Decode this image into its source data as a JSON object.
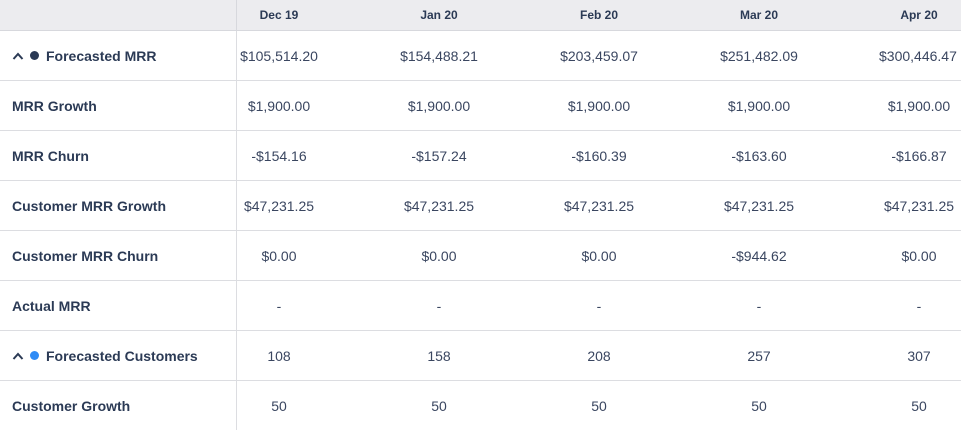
{
  "columns": [
    "Dec 19",
    "Jan 20",
    "Feb 20",
    "Mar 20",
    "Apr 20"
  ],
  "colors": {
    "mrr_dot": "#2b3a55",
    "customers_dot": "#2f8bf5"
  },
  "rows": [
    {
      "label": "Forecasted MRR",
      "group": true,
      "icon": "chevron-up-icon",
      "values": [
        "$105,514.20",
        "$154,488.21",
        "$203,459.07",
        "$251,482.09",
        "$300,446.47"
      ]
    },
    {
      "label": "MRR Growth",
      "values": [
        "$1,900.00",
        "$1,900.00",
        "$1,900.00",
        "$1,900.00",
        "$1,900.00"
      ]
    },
    {
      "label": "MRR Churn",
      "values": [
        "-$154.16",
        "-$157.24",
        "-$160.39",
        "-$163.60",
        "-$166.87"
      ]
    },
    {
      "label": "Customer MRR Growth",
      "values": [
        "$47,231.25",
        "$47,231.25",
        "$47,231.25",
        "$47,231.25",
        "$47,231.25"
      ]
    },
    {
      "label": "Customer MRR Churn",
      "values": [
        "$0.00",
        "$0.00",
        "$0.00",
        "-$944.62",
        "$0.00"
      ]
    },
    {
      "label": "Actual MRR",
      "values": [
        "-",
        "-",
        "-",
        "-",
        "-"
      ]
    },
    {
      "label": "Forecasted Customers",
      "group": true,
      "icon": "chevron-up-icon",
      "values": [
        "108",
        "158",
        "208",
        "257",
        "307"
      ]
    },
    {
      "label": "Customer Growth",
      "values": [
        "50",
        "50",
        "50",
        "50",
        "50"
      ]
    }
  ]
}
